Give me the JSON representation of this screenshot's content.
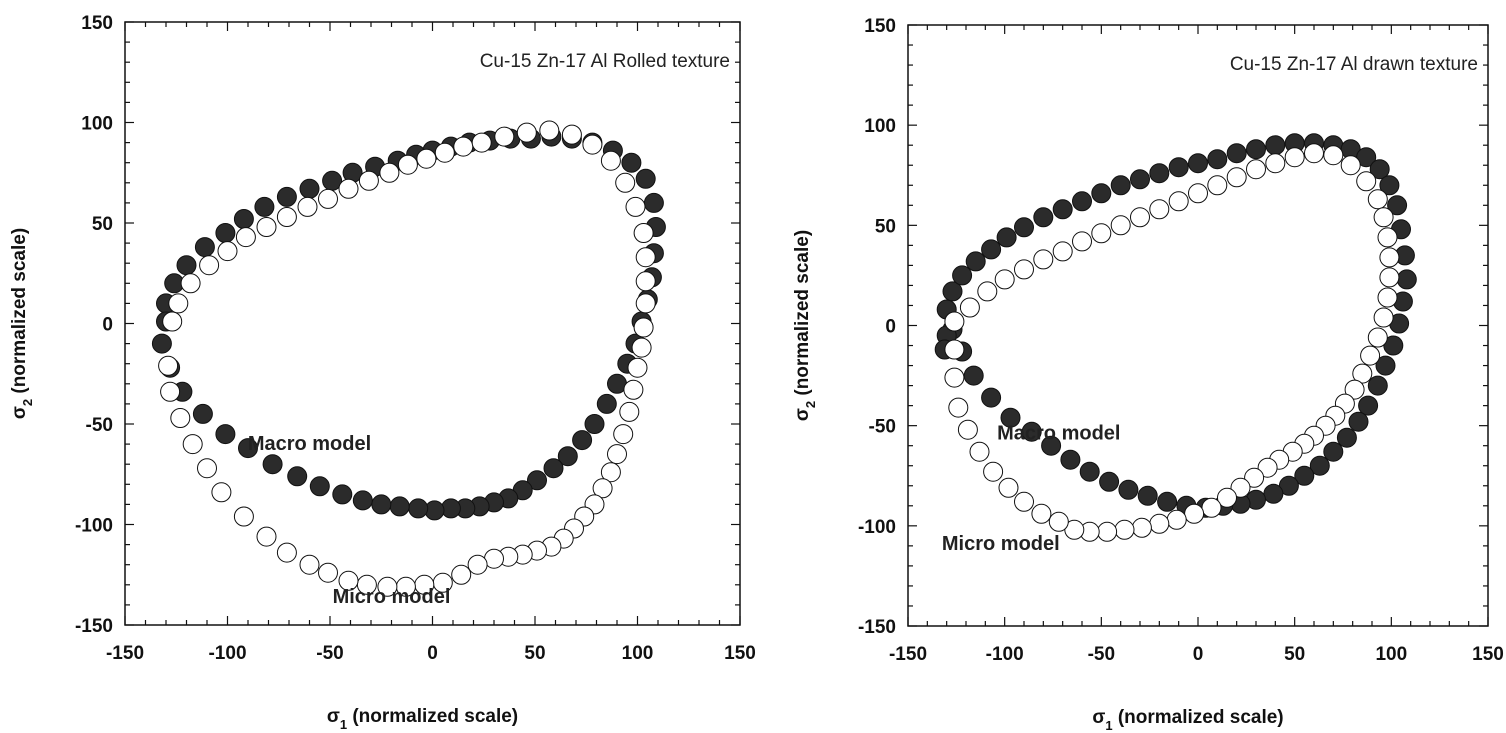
{
  "chart_data": [
    {
      "type": "scatter",
      "title": "Cu-15 Zn-17 Al Rolled texture",
      "xlabel": {
        "symbol": "σ",
        "sub": "1",
        "text": " (normalized scale)"
      },
      "ylabel": {
        "symbol": "σ",
        "sub": "2",
        "text": " (normalized scale)"
      },
      "xlim": [
        -150,
        150
      ],
      "ylim": [
        -150,
        150
      ],
      "xticks": [
        "-150",
        "-100",
        "-50",
        "0",
        "50",
        "100",
        "150"
      ],
      "yticks": [
        "-150",
        "-100",
        "-50",
        "0",
        "50",
        "100",
        "150"
      ],
      "grid": false,
      "annotations": [
        {
          "text": "Macro model",
          "x": -60,
          "y": -63
        },
        {
          "text": "Micro model",
          "x": -20,
          "y": -139
        }
      ],
      "series": [
        {
          "name": "Macro model",
          "marker": "filled",
          "color": "#2b2b2b",
          "x": [
            -130,
            -126,
            -120,
            -111,
            -101,
            -92,
            -82,
            -71,
            -60,
            -49,
            -39,
            -28,
            -17,
            -8,
            0,
            9,
            18,
            28,
            38,
            48,
            58,
            68,
            78,
            88,
            97,
            104,
            108,
            109,
            108,
            107,
            105,
            102,
            99,
            95,
            90,
            85,
            79,
            73,
            66,
            59,
            51,
            44,
            37,
            30,
            23,
            16,
            9,
            1,
            -7,
            -16,
            -25,
            -34,
            -44,
            -55,
            -66,
            -78,
            -90,
            -101,
            -112,
            -122,
            -128,
            -132,
            -130
          ],
          "y": [
            10,
            20,
            29,
            38,
            45,
            52,
            58,
            63,
            67,
            71,
            75,
            78,
            81,
            84,
            86,
            88,
            90,
            91,
            92,
            92,
            93,
            92,
            90,
            86,
            80,
            72,
            60,
            48,
            35,
            23,
            12,
            1,
            -10,
            -20,
            -30,
            -40,
            -50,
            -58,
            -66,
            -72,
            -78,
            -83,
            -87,
            -89,
            -91,
            -92,
            -92,
            -93,
            -92,
            -91,
            -90,
            -88,
            -85,
            -81,
            -76,
            -70,
            -62,
            -55,
            -45,
            -34,
            -22,
            -10,
            1
          ]
        },
        {
          "name": "Micro model",
          "marker": "open",
          "color": "#ffffff",
          "x": [
            -127,
            -124,
            -118,
            -109,
            -100,
            -91,
            -81,
            -71,
            -61,
            -51,
            -41,
            -31,
            -21,
            -12,
            -3,
            6,
            15,
            24,
            35,
            46,
            57,
            68,
            78,
            87,
            94,
            99,
            103,
            104,
            104,
            104,
            103,
            102,
            100,
            98,
            96,
            93,
            90,
            87,
            83,
            79,
            74,
            69,
            64,
            58,
            51,
            44,
            37,
            30,
            22,
            14,
            5,
            -4,
            -13,
            -22,
            -32,
            -41,
            -51,
            -60,
            -71,
            -81,
            -92,
            -103,
            -110,
            -117,
            -123,
            -128,
            -129
          ],
          "y": [
            1,
            10,
            20,
            29,
            36,
            43,
            48,
            53,
            58,
            62,
            67,
            71,
            75,
            79,
            82,
            85,
            88,
            90,
            93,
            95,
            96,
            94,
            89,
            81,
            70,
            58,
            45,
            33,
            21,
            10,
            -2,
            -12,
            -22,
            -33,
            -44,
            -55,
            -65,
            -74,
            -82,
            -90,
            -96,
            -102,
            -107,
            -111,
            -113,
            -115,
            -116,
            -117,
            -120,
            -125,
            -129,
            -130,
            -131,
            -131,
            -130,
            -128,
            -124,
            -120,
            -114,
            -106,
            -96,
            -84,
            -72,
            -60,
            -47,
            -34,
            -21
          ]
        }
      ]
    },
    {
      "type": "scatter",
      "title": "Cu-15 Zn-17 Al drawn texture",
      "xlabel": {
        "symbol": "σ",
        "sub": "1",
        "text": " (normalized scale)"
      },
      "ylabel": {
        "symbol": "σ",
        "sub": "2",
        "text": " (normalized scale)"
      },
      "xlim": [
        -150,
        150
      ],
      "ylim": [
        -150,
        150
      ],
      "xticks": [
        "-150",
        "-100",
        "-50",
        "0",
        "50",
        "100",
        "150"
      ],
      "yticks": [
        "-150",
        "-100",
        "-50",
        "0",
        "50",
        "100",
        "150"
      ],
      "grid": false,
      "annotations": [
        {
          "text": "Macro model",
          "x": -72,
          "y": -57
        },
        {
          "text": "Micro model",
          "x": -102,
          "y": -112
        }
      ],
      "series": [
        {
          "name": "Macro model",
          "marker": "filled",
          "color": "#2b2b2b",
          "x": [
            -130,
            -127,
            -122,
            -115,
            -107,
            -99,
            -90,
            -80,
            -70,
            -60,
            -50,
            -40,
            -30,
            -20,
            -10,
            0,
            10,
            20,
            30,
            40,
            50,
            60,
            70,
            79,
            87,
            94,
            99,
            103,
            105,
            107,
            108,
            106,
            104,
            101,
            97,
            93,
            88,
            83,
            77,
            70,
            63,
            55,
            47,
            39,
            30,
            22,
            13,
            4,
            -6,
            -16,
            -26,
            -36,
            -46,
            -56,
            -66,
            -76,
            -86,
            -97,
            -107,
            -116,
            -122,
            -127,
            -130,
            -131
          ],
          "y": [
            8,
            17,
            25,
            32,
            38,
            44,
            49,
            54,
            58,
            62,
            66,
            70,
            73,
            76,
            79,
            81,
            83,
            86,
            88,
            90,
            91,
            91,
            90,
            88,
            84,
            78,
            70,
            60,
            48,
            35,
            23,
            12,
            1,
            -10,
            -20,
            -30,
            -40,
            -48,
            -56,
            -63,
            -70,
            -75,
            -80,
            -84,
            -87,
            -89,
            -90,
            -91,
            -90,
            -88,
            -85,
            -82,
            -78,
            -73,
            -67,
            -60,
            -53,
            -46,
            -36,
            -25,
            -13,
            -2,
            -5,
            -12
          ]
        },
        {
          "name": "Micro model",
          "marker": "open",
          "color": "#ffffff",
          "x": [
            -126,
            -118,
            -109,
            -100,
            -90,
            -80,
            -70,
            -60,
            -50,
            -40,
            -30,
            -20,
            -10,
            0,
            10,
            20,
            30,
            40,
            50,
            60,
            70,
            79,
            87,
            93,
            96,
            98,
            99,
            99,
            98,
            96,
            93,
            89,
            85,
            81,
            76,
            71,
            66,
            60,
            55,
            49,
            42,
            36,
            29,
            22,
            15,
            7,
            -2,
            -11,
            -20,
            -29,
            -38,
            -47,
            -56,
            -64,
            -72,
            -81,
            -90,
            -98,
            -106,
            -113,
            -119,
            -124,
            -126,
            -126
          ],
          "y": [
            2,
            9,
            17,
            23,
            28,
            33,
            37,
            42,
            46,
            50,
            54,
            58,
            62,
            66,
            70,
            74,
            78,
            81,
            84,
            86,
            85,
            80,
            72,
            63,
            54,
            44,
            34,
            24,
            14,
            4,
            -6,
            -15,
            -24,
            -32,
            -39,
            -45,
            -50,
            -55,
            -59,
            -63,
            -67,
            -71,
            -76,
            -81,
            -86,
            -91,
            -94,
            -97,
            -99,
            -101,
            -102,
            -103,
            -103,
            -102,
            -98,
            -94,
            -88,
            -81,
            -73,
            -63,
            -52,
            -41,
            -26,
            -12
          ]
        }
      ]
    }
  ]
}
